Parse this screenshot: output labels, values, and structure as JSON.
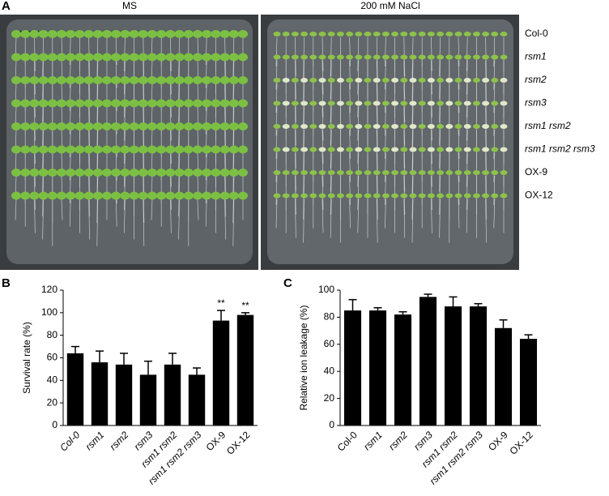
{
  "figure": {
    "panel_label": "A",
    "plate_titles": [
      "MS",
      "200 mM NaCl"
    ],
    "genotypes": [
      "Col-0",
      "rsm1",
      "rsm2",
      "rsm3",
      "rsm1 rsm2",
      "rsm1 rsm2 rsm3",
      "OX-9",
      "OX-12"
    ]
  },
  "chart_data": [
    {
      "type": "bar",
      "panel_label": "B",
      "ylabel": "Survival  rate (%)",
      "color": "#000000",
      "categories": [
        "Col-0",
        "rsm1",
        "rsm2",
        "rsm3",
        "rsm1 rsm2",
        "rsm1 rsm2 rsm3",
        "OX-9",
        "OX-12"
      ],
      "values": [
        64,
        56,
        54,
        45,
        54,
        45,
        93,
        98
      ],
      "errors": [
        6,
        10,
        10,
        12,
        10,
        6,
        9,
        2
      ],
      "annotations": [
        {
          "label": "**",
          "category": "OX-9"
        },
        {
          "label": "**",
          "category": "OX-12"
        }
      ],
      "ylim": [
        0,
        120
      ],
      "yticks": [
        0,
        20,
        40,
        60,
        80,
        100,
        120
      ]
    },
    {
      "type": "bar",
      "panel_label": "C",
      "ylabel": "Relative ion leakage (%)",
      "color": "#000000",
      "categories": [
        "Col-0",
        "rsm1",
        "rsm2",
        "rsm3",
        "rsm1 rsm2",
        "rsm1 rsm2 rsm3",
        "OX-9",
        "OX-12"
      ],
      "values": [
        85,
        85,
        82,
        95,
        88,
        88,
        72,
        64
      ],
      "errors": [
        8,
        2,
        2,
        2,
        7,
        2,
        6,
        3
      ],
      "ylim": [
        0,
        100
      ],
      "yticks": [
        0,
        20,
        40,
        60,
        80,
        100
      ]
    }
  ]
}
